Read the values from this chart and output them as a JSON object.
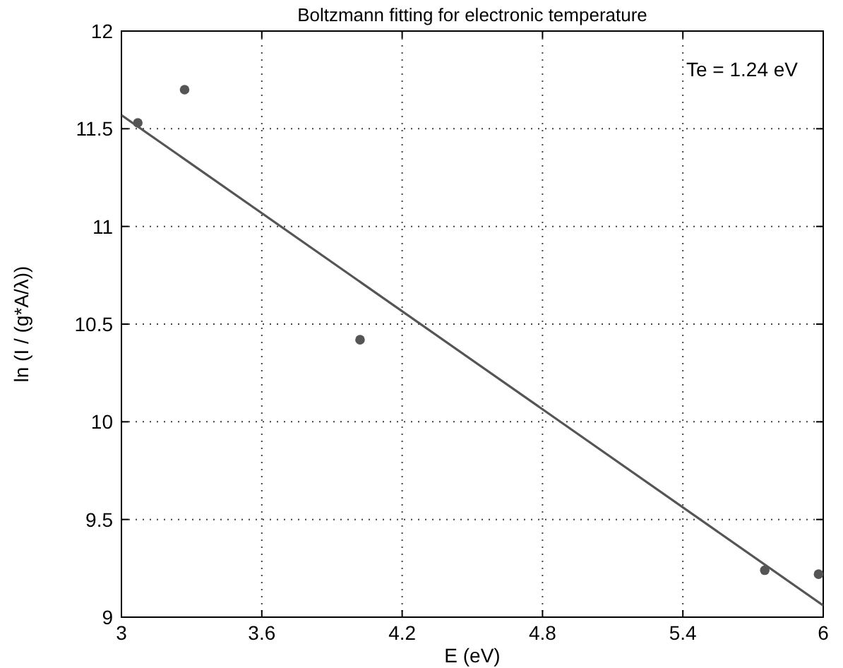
{
  "chart_data": {
    "type": "scatter",
    "title": "Boltzmann fitting for electronic temperature",
    "xlabel": "E (eV)",
    "ylabel": "ln (I / (g*A/λ))",
    "series": [
      {
        "color": "#555555",
        "x": [
          3.07,
          3.27,
          4.02,
          5.75,
          5.98
        ],
        "values": [
          11.53,
          11.7,
          10.42,
          9.24,
          9.22
        ],
        "marker": "circle"
      },
      {
        "type": "line",
        "color": "#555555",
        "x": [
          3,
          6
        ],
        "values": [
          11.57,
          9.06
        ],
        "marker": "none",
        "line_style": "solid"
      }
    ],
    "xlim": [
      3,
      6
    ],
    "xticks": [
      3,
      3.6,
      4.2,
      4.8,
      5.4,
      6
    ],
    "ylim": [
      9,
      12
    ],
    "yticks": [
      9,
      9.5,
      10,
      10.5,
      11,
      11.5,
      12
    ],
    "grid": true,
    "annotations": [
      "Te = 1.24 eV"
    ]
  }
}
